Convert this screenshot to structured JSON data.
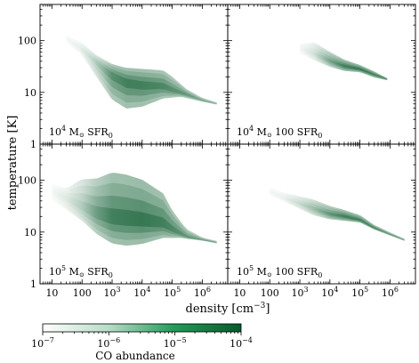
{
  "chart_data": {
    "type": "scatter",
    "xlabel": "density [cm",
    "xlabel_sup": "−3",
    "xlabel_end": "]",
    "ylabel": "temperature [K]",
    "x_scale": "log",
    "y_scale": "log",
    "xlim": [
      4,
      7000000
    ],
    "ylim": [
      1,
      500
    ],
    "x_ticks": [
      {
        "v": 10,
        "base": "10",
        "sup": ""
      },
      {
        "v": 100,
        "base": "100",
        "sup": ""
      },
      {
        "v": 1000,
        "base": "10",
        "sup": "3"
      },
      {
        "v": 10000,
        "base": "10",
        "sup": "4"
      },
      {
        "v": 100000,
        "base": "10",
        "sup": "5"
      },
      {
        "v": 1000000,
        "base": "10",
        "sup": "6"
      }
    ],
    "y_ticks": [
      {
        "v": 1,
        "label": "1"
      },
      {
        "v": 10,
        "label": "10"
      },
      {
        "v": 100,
        "label": "100"
      }
    ],
    "colorbar": {
      "label": "CO abundance",
      "scale": "log",
      "min": 1e-07,
      "max": 0.0001,
      "colors": [
        "#ffffff",
        "#08592b"
      ],
      "ticks": [
        {
          "v": 1e-07,
          "base": "10",
          "sup": "−7"
        },
        {
          "v": 1e-06,
          "base": "10",
          "sup": "−6"
        },
        {
          "v": 1e-05,
          "base": "10",
          "sup": "−5"
        },
        {
          "v": 0.0001,
          "base": "10",
          "sup": "−4"
        }
      ]
    },
    "panels": [
      {
        "mass_base": "10",
        "mass_sup": "4",
        "mass_unit": "M",
        "sfr_prefix": "",
        "sfr": "SFR",
        "sfr_sub": "0",
        "ridge": [
          [
            30,
            110,
            0.05
          ],
          [
            80,
            75,
            0.1
          ],
          [
            200,
            48,
            0.25
          ],
          [
            500,
            30,
            0.5
          ],
          [
            1000,
            22,
            0.75
          ],
          [
            3000,
            16,
            0.85
          ],
          [
            10000,
            14,
            0.85
          ],
          [
            50000,
            13,
            0.8
          ],
          [
            100000,
            11,
            0.75
          ],
          [
            300000,
            9,
            0.7
          ],
          [
            1000000,
            7,
            0.6
          ],
          [
            3000000,
            6,
            0.55
          ]
        ],
        "lower": [
          [
            30,
            90
          ],
          [
            100,
            50
          ],
          [
            300,
            18
          ],
          [
            1000,
            6
          ],
          [
            3000,
            4
          ],
          [
            10000,
            4.5
          ],
          [
            50000,
            7
          ],
          [
            200000,
            8
          ],
          [
            1000000,
            6.5
          ],
          [
            3000000,
            5.8
          ]
        ],
        "upper": [
          [
            30,
            130
          ],
          [
            100,
            95
          ],
          [
            300,
            55
          ],
          [
            1000,
            38
          ],
          [
            3000,
            33
          ],
          [
            10000,
            32
          ],
          [
            50000,
            30
          ],
          [
            100000,
            22
          ],
          [
            300000,
            12
          ],
          [
            1000000,
            8
          ],
          [
            3000000,
            6.5
          ]
        ]
      },
      {
        "mass_base": "10",
        "mass_sup": "4",
        "mass_unit": "M",
        "sfr_prefix": "100",
        "sfr": "SFR",
        "sfr_sub": "0",
        "ridge": [
          [
            1000,
            70,
            0.05
          ],
          [
            3000,
            55,
            0.2
          ],
          [
            10000,
            40,
            0.6
          ],
          [
            30000,
            32,
            0.85
          ],
          [
            100000,
            28,
            0.9
          ],
          [
            300000,
            22,
            0.85
          ],
          [
            800000,
            18,
            0.8
          ]
        ],
        "lower": [
          [
            1000,
            55
          ],
          [
            3000,
            40
          ],
          [
            10000,
            30
          ],
          [
            30000,
            25
          ],
          [
            100000,
            24
          ],
          [
            300000,
            19
          ],
          [
            800000,
            17
          ]
        ],
        "upper": [
          [
            1000,
            90
          ],
          [
            3000,
            100
          ],
          [
            10000,
            65
          ],
          [
            30000,
            45
          ],
          [
            100000,
            35
          ],
          [
            300000,
            26
          ],
          [
            800000,
            19
          ]
        ]
      },
      {
        "mass_base": "10",
        "mass_sup": "5",
        "mass_unit": "M",
        "sfr_prefix": "",
        "sfr": "SFR",
        "sfr_sub": "0",
        "ridge": [
          [
            10,
            60,
            0.05
          ],
          [
            30,
            45,
            0.15
          ],
          [
            100,
            30,
            0.35
          ],
          [
            300,
            22,
            0.65
          ],
          [
            1000,
            18,
            0.85
          ],
          [
            10000,
            16,
            0.9
          ],
          [
            50000,
            14,
            0.85
          ],
          [
            100000,
            11,
            0.8
          ],
          [
            300000,
            8,
            0.7
          ],
          [
            1000000,
            7,
            0.65
          ],
          [
            3000000,
            6.3,
            0.6
          ]
        ],
        "lower": [
          [
            10,
            40
          ],
          [
            30,
            25
          ],
          [
            100,
            15
          ],
          [
            300,
            8
          ],
          [
            1000,
            5
          ],
          [
            3000,
            4.5
          ],
          [
            10000,
            5
          ],
          [
            50000,
            7
          ],
          [
            200000,
            7.5
          ],
          [
            1000000,
            6.8
          ],
          [
            3000000,
            6
          ]
        ],
        "upper": [
          [
            10,
            90
          ],
          [
            30,
            75
          ],
          [
            100,
            130
          ],
          [
            300,
            140
          ],
          [
            1000,
            200
          ],
          [
            3000,
            180
          ],
          [
            10000,
            140
          ],
          [
            50000,
            70
          ],
          [
            100000,
            30
          ],
          [
            300000,
            12
          ],
          [
            1000000,
            8
          ],
          [
            3000000,
            6.8
          ]
        ]
      },
      {
        "mass_base": "10",
        "mass_sup": "5",
        "mass_unit": "M",
        "sfr_prefix": "100",
        "sfr": "SFR",
        "sfr_sub": "0",
        "ridge": [
          [
            100,
            60,
            0.05
          ],
          [
            300,
            45,
            0.1
          ],
          [
            1000,
            35,
            0.25
          ],
          [
            3000,
            28,
            0.45
          ],
          [
            10000,
            22,
            0.7
          ],
          [
            30000,
            20,
            0.85
          ],
          [
            100000,
            17,
            0.85
          ],
          [
            300000,
            12,
            0.8
          ],
          [
            1000000,
            9,
            0.7
          ],
          [
            3000000,
            7,
            0.65
          ]
        ],
        "lower": [
          [
            100,
            50
          ],
          [
            300,
            38
          ],
          [
            1000,
            27
          ],
          [
            3000,
            20
          ],
          [
            10000,
            17
          ],
          [
            30000,
            16
          ],
          [
            100000,
            15
          ],
          [
            300000,
            11
          ],
          [
            1000000,
            8.5
          ],
          [
            3000000,
            6.7
          ]
        ],
        "upper": [
          [
            100,
            75
          ],
          [
            300,
            60
          ],
          [
            1000,
            52
          ],
          [
            3000,
            45
          ],
          [
            10000,
            34
          ],
          [
            30000,
            28
          ],
          [
            100000,
            22
          ],
          [
            300000,
            14
          ],
          [
            1000000,
            10
          ],
          [
            3000000,
            7.5
          ]
        ]
      }
    ]
  }
}
